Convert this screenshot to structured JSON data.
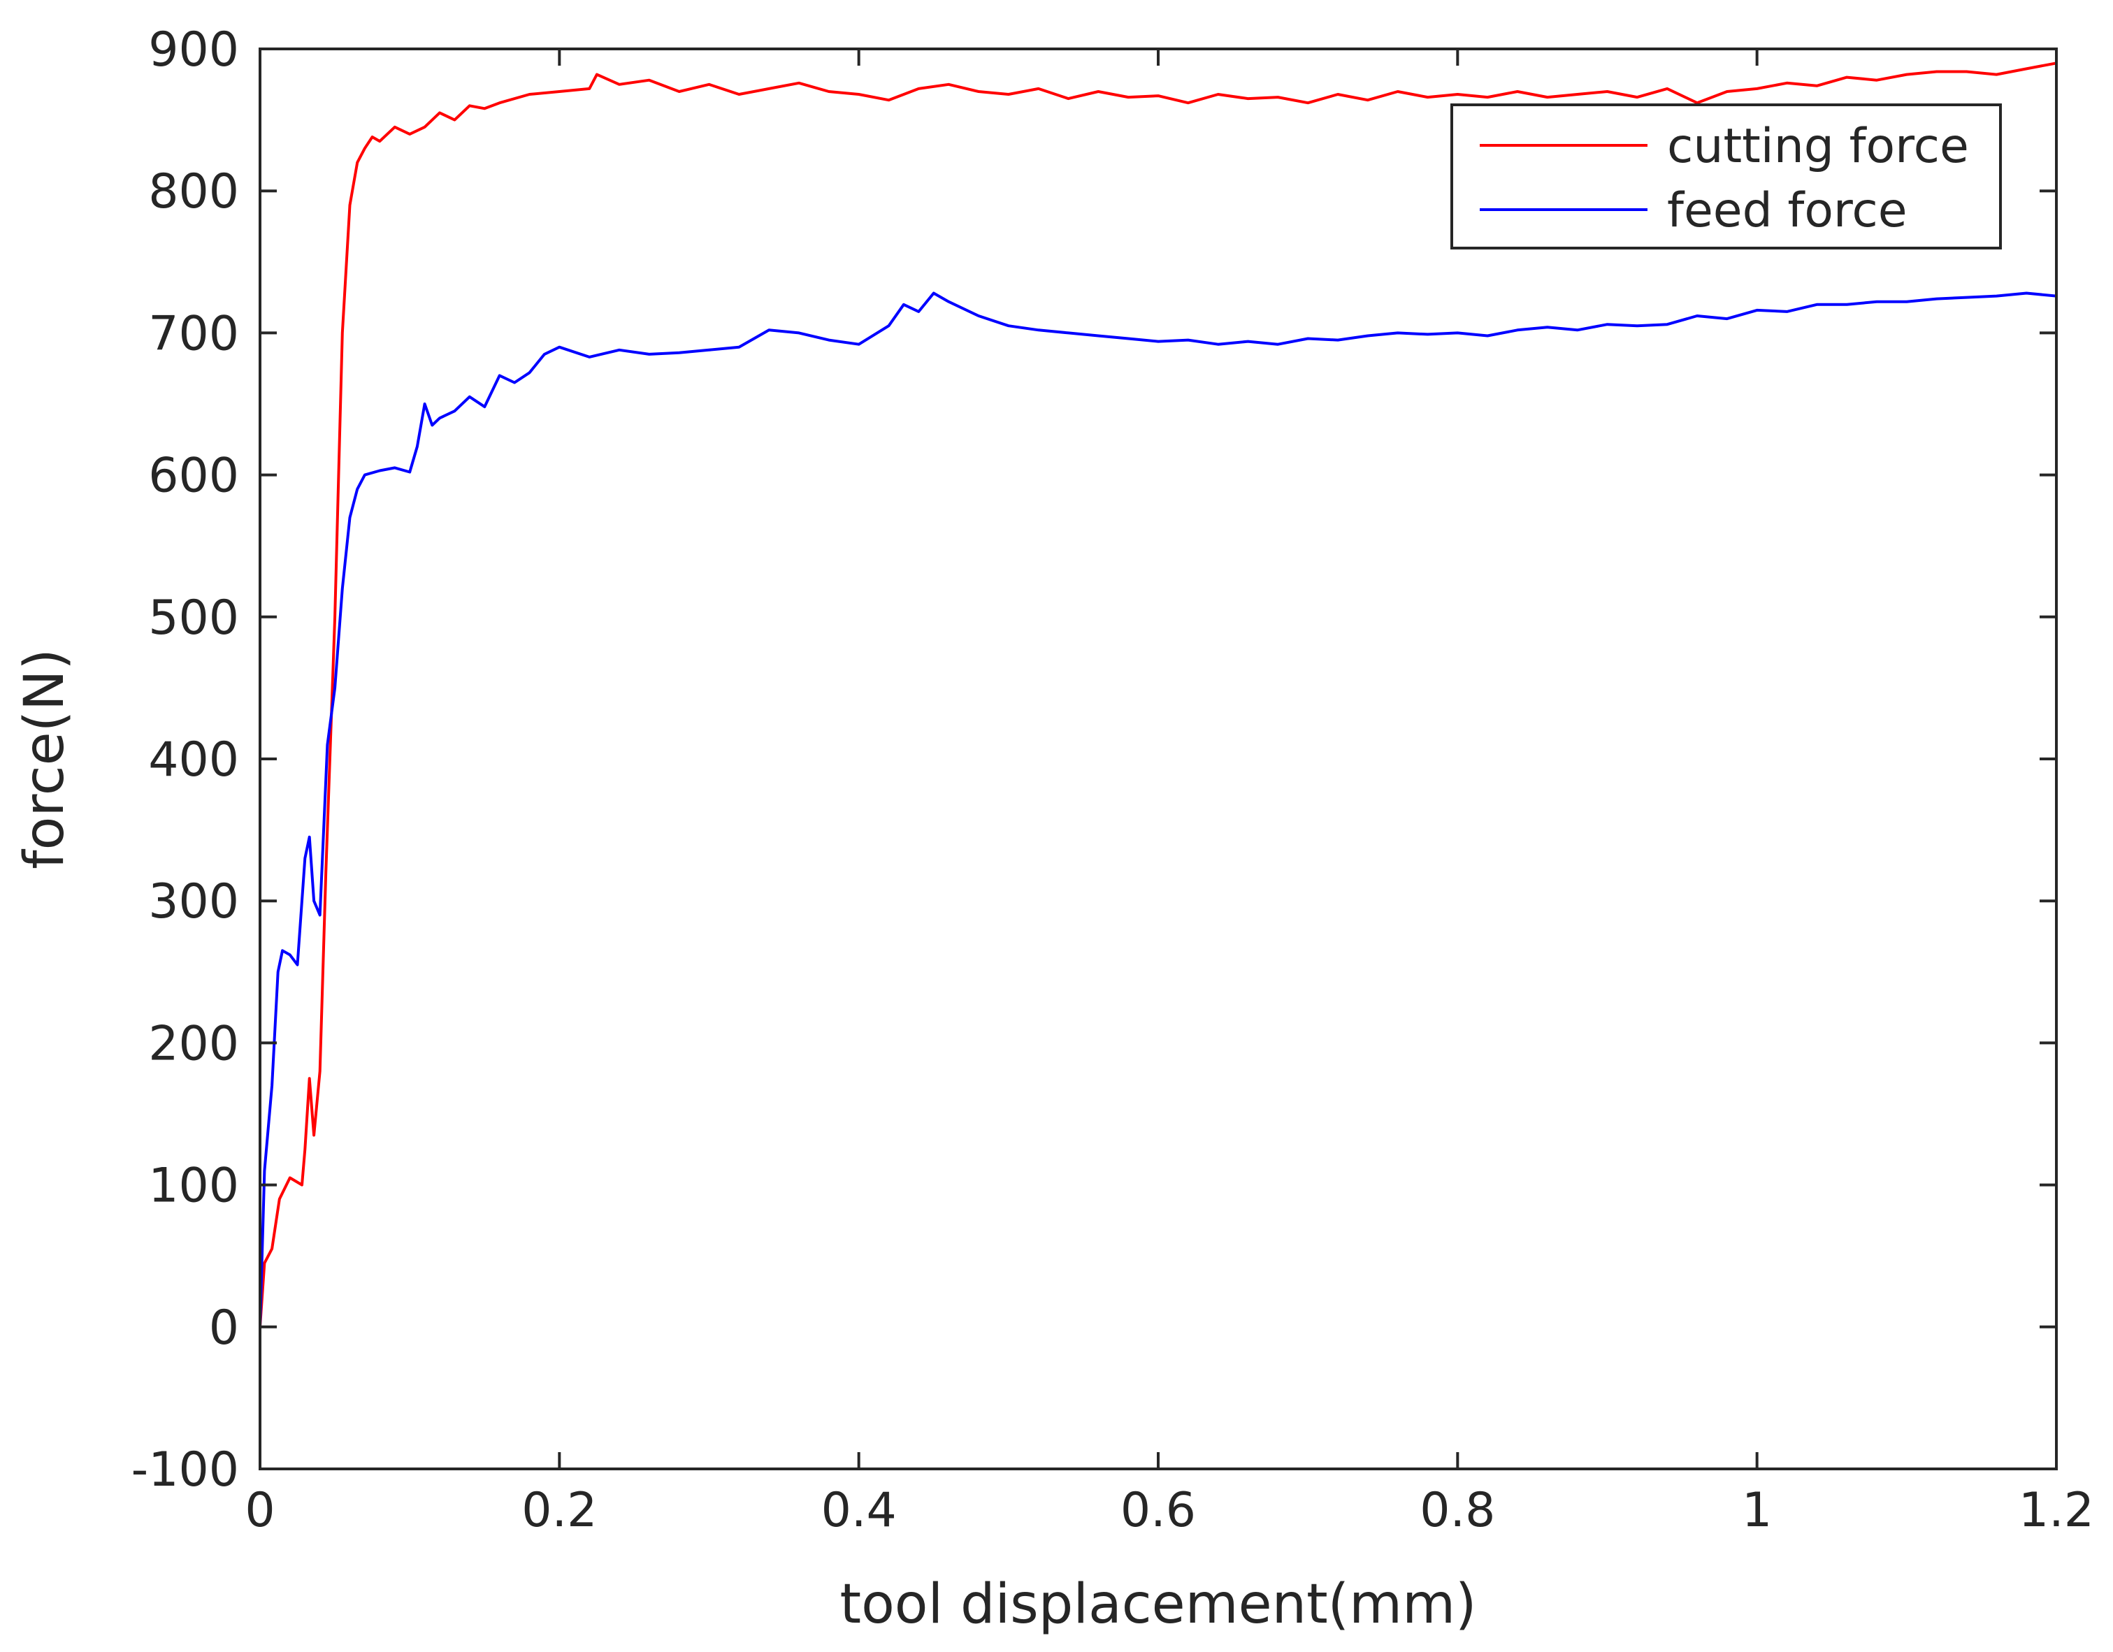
{
  "chart_data": {
    "type": "line",
    "title": "",
    "xlabel": "tool displacement(mm)",
    "ylabel": "force(N)",
    "xlim": [
      0,
      1.2
    ],
    "ylim": [
      -100,
      900
    ],
    "xticks": [
      0,
      0.2,
      0.4,
      0.6,
      0.8,
      1,
      1.2
    ],
    "xtick_labels": [
      "0",
      "0.2",
      "0.4",
      "0.6",
      "0.8",
      "1",
      "1.2"
    ],
    "yticks": [
      -100,
      0,
      100,
      200,
      300,
      400,
      500,
      600,
      700,
      800,
      900
    ],
    "ytick_labels": [
      "-100",
      "0",
      "100",
      "200",
      "300",
      "400",
      "500",
      "600",
      "700",
      "800",
      "900"
    ],
    "grid": false,
    "legend_position": "top-right",
    "series": [
      {
        "name": "cutting force",
        "color": "#ff0000",
        "x": [
          0,
          0.003,
          0.008,
          0.013,
          0.02,
          0.028,
          0.03,
          0.033,
          0.036,
          0.04,
          0.044,
          0.05,
          0.055,
          0.06,
          0.065,
          0.07,
          0.075,
          0.08,
          0.09,
          0.1,
          0.11,
          0.12,
          0.13,
          0.14,
          0.15,
          0.16,
          0.18,
          0.2,
          0.22,
          0.225,
          0.24,
          0.26,
          0.28,
          0.3,
          0.32,
          0.34,
          0.36,
          0.38,
          0.4,
          0.42,
          0.44,
          0.46,
          0.48,
          0.5,
          0.52,
          0.54,
          0.56,
          0.58,
          0.6,
          0.62,
          0.64,
          0.66,
          0.68,
          0.7,
          0.72,
          0.74,
          0.76,
          0.78,
          0.8,
          0.82,
          0.84,
          0.86,
          0.88,
          0.9,
          0.92,
          0.94,
          0.96,
          0.98,
          1.0,
          1.02,
          1.04,
          1.06,
          1.08,
          1.1,
          1.12,
          1.14,
          1.16,
          1.18,
          1.2
        ],
        "y": [
          0,
          45,
          55,
          90,
          105,
          100,
          125,
          175,
          135,
          180,
          320,
          500,
          700,
          790,
          820,
          830,
          838,
          835,
          845,
          840,
          845,
          855,
          850,
          860,
          858,
          862,
          868,
          870,
          872,
          882,
          875,
          878,
          870,
          875,
          868,
          872,
          876,
          870,
          868,
          864,
          872,
          875,
          870,
          868,
          872,
          865,
          870,
          866,
          867,
          862,
          868,
          865,
          866,
          862,
          868,
          864,
          870,
          866,
          868,
          866,
          870,
          866,
          868,
          870,
          866,
          872,
          862,
          870,
          872,
          876,
          874,
          880,
          878,
          882,
          884,
          884,
          882,
          886,
          890
        ]
      },
      {
        "name": "feed force",
        "color": "#0000ff",
        "x": [
          0,
          0.003,
          0.008,
          0.012,
          0.015,
          0.02,
          0.025,
          0.03,
          0.033,
          0.036,
          0.04,
          0.045,
          0.05,
          0.055,
          0.06,
          0.065,
          0.07,
          0.08,
          0.09,
          0.1,
          0.105,
          0.11,
          0.115,
          0.12,
          0.13,
          0.14,
          0.15,
          0.16,
          0.17,
          0.18,
          0.19,
          0.2,
          0.22,
          0.24,
          0.26,
          0.28,
          0.3,
          0.32,
          0.34,
          0.36,
          0.38,
          0.4,
          0.42,
          0.43,
          0.44,
          0.45,
          0.46,
          0.48,
          0.5,
          0.52,
          0.54,
          0.56,
          0.58,
          0.6,
          0.62,
          0.64,
          0.66,
          0.68,
          0.7,
          0.72,
          0.74,
          0.76,
          0.78,
          0.8,
          0.82,
          0.84,
          0.86,
          0.88,
          0.9,
          0.92,
          0.94,
          0.96,
          0.98,
          1.0,
          1.02,
          1.04,
          1.06,
          1.08,
          1.1,
          1.12,
          1.14,
          1.16,
          1.18,
          1.2
        ],
        "y": [
          0,
          110,
          170,
          250,
          265,
          262,
          255,
          330,
          345,
          300,
          290,
          410,
          450,
          520,
          570,
          590,
          600,
          603,
          605,
          602,
          620,
          650,
          635,
          640,
          645,
          655,
          648,
          670,
          665,
          672,
          685,
          690,
          683,
          688,
          685,
          686,
          688,
          690,
          702,
          700,
          695,
          692,
          705,
          720,
          715,
          728,
          722,
          712,
          705,
          702,
          700,
          698,
          696,
          694,
          695,
          692,
          694,
          692,
          696,
          695,
          698,
          700,
          699,
          700,
          698,
          702,
          704,
          702,
          706,
          705,
          706,
          712,
          710,
          716,
          715,
          720,
          720,
          722,
          722,
          724,
          725,
          726,
          728,
          726
        ]
      }
    ]
  }
}
